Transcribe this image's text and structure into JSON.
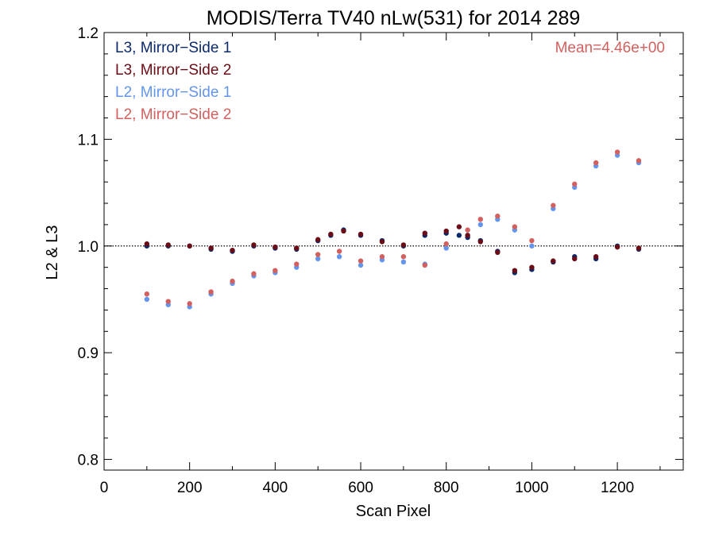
{
  "chart_data": {
    "type": "scatter",
    "title": "MODIS/Terra TV40 nLw(531) for 2014 289",
    "xlabel": "Scan Pixel",
    "ylabel": "L2 & L3",
    "xlim": [
      0,
      1354
    ],
    "ylim": [
      0.79,
      1.2
    ],
    "xticks": [
      0,
      200,
      400,
      600,
      800,
      1000,
      1200
    ],
    "yticks": [
      0.8,
      0.9,
      1.0,
      1.1,
      1.2
    ],
    "ytick_labels": [
      "0.8",
      "0.9",
      "1.0",
      "1.1",
      "1.2"
    ],
    "reference_line": 1.0,
    "annotation": "Mean=4.46e+00",
    "legend_position": "top-left",
    "grid": false,
    "series": [
      {
        "name": "L3, Mirror−Side 1",
        "color": "#0c2a6b",
        "x": [
          100,
          150,
          200,
          250,
          300,
          350,
          400,
          450,
          500,
          530,
          560,
          600,
          650,
          700,
          750,
          800,
          830,
          850,
          880,
          920,
          960,
          1000,
          1050,
          1100,
          1150,
          1200,
          1250
        ],
        "y": [
          1.0,
          1.0,
          1.0,
          0.997,
          0.995,
          1.0,
          0.998,
          0.997,
          1.005,
          1.01,
          1.015,
          1.01,
          1.005,
          1.0,
          1.01,
          1.012,
          1.01,
          1.008,
          1.005,
          0.995,
          0.975,
          0.978,
          0.985,
          0.99,
          0.988,
          1.0,
          0.997
        ]
      },
      {
        "name": "L3, Mirror−Side 2",
        "color": "#6b0d16",
        "x": [
          100,
          150,
          200,
          250,
          300,
          350,
          400,
          450,
          500,
          530,
          560,
          600,
          650,
          700,
          750,
          800,
          830,
          850,
          880,
          920,
          960,
          1000,
          1050,
          1100,
          1150,
          1200,
          1250
        ],
        "y": [
          1.002,
          1.001,
          1.0,
          0.998,
          0.996,
          1.001,
          0.999,
          0.998,
          1.006,
          1.011,
          1.014,
          1.011,
          1.004,
          1.001,
          1.012,
          1.014,
          1.018,
          1.01,
          1.004,
          0.994,
          0.977,
          0.98,
          0.986,
          0.988,
          0.99,
          0.999,
          0.998
        ]
      },
      {
        "name": "L2, Mirror−Side 1",
        "color": "#6495ed",
        "x": [
          100,
          150,
          200,
          250,
          300,
          350,
          400,
          450,
          500,
          550,
          600,
          650,
          700,
          750,
          800,
          850,
          880,
          920,
          960,
          1000,
          1050,
          1100,
          1150,
          1200,
          1250
        ],
        "y": [
          0.95,
          0.945,
          0.943,
          0.955,
          0.965,
          0.972,
          0.975,
          0.98,
          0.988,
          0.99,
          0.982,
          0.987,
          0.985,
          0.983,
          0.998,
          1.01,
          1.02,
          1.025,
          1.015,
          1.0,
          1.035,
          1.055,
          1.075,
          1.085,
          1.078
        ]
      },
      {
        "name": "L2, Mirror−Side 2",
        "color": "#d2605f",
        "x": [
          100,
          150,
          200,
          250,
          300,
          350,
          400,
          450,
          500,
          550,
          600,
          650,
          700,
          750,
          800,
          850,
          880,
          920,
          960,
          1000,
          1050,
          1100,
          1150,
          1200,
          1250
        ],
        "y": [
          0.955,
          0.948,
          0.946,
          0.957,
          0.967,
          0.974,
          0.977,
          0.983,
          0.992,
          0.995,
          0.986,
          0.99,
          0.99,
          0.982,
          1.002,
          1.015,
          1.025,
          1.028,
          1.018,
          1.005,
          1.038,
          1.058,
          1.078,
          1.088,
          1.08
        ]
      }
    ]
  }
}
